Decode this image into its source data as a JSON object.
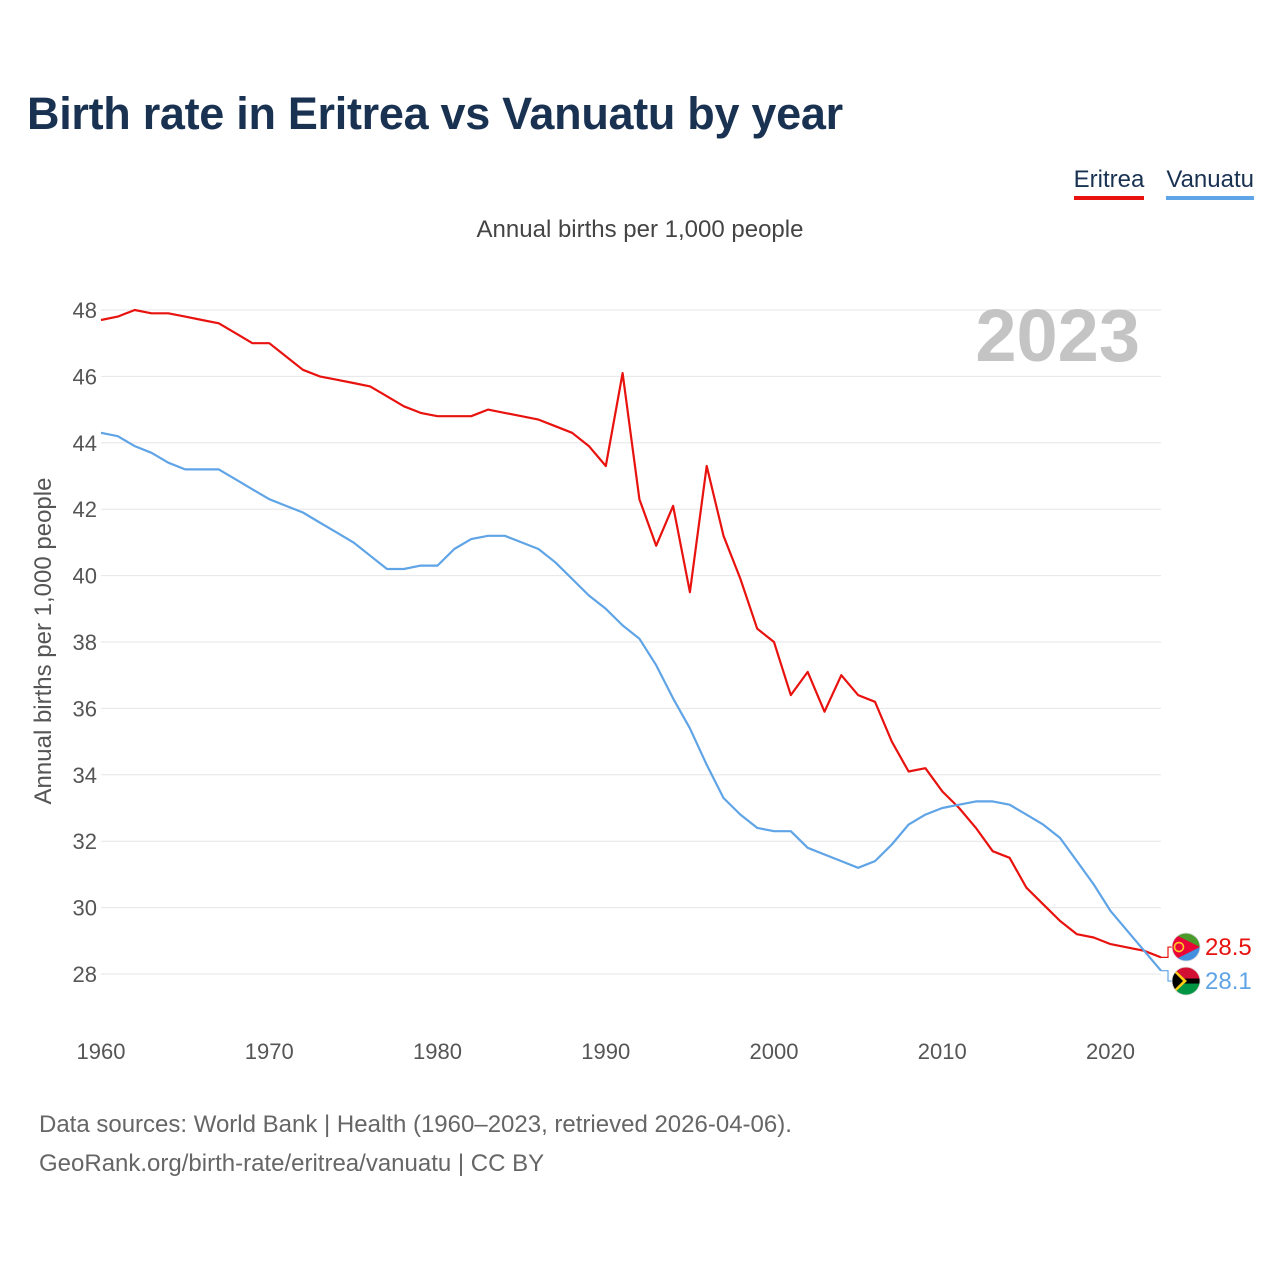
{
  "title": "Birth rate in Eritrea vs Vanuatu by year",
  "subtitle": "Annual births per 1,000 people",
  "legend": [
    {
      "name": "Eritrea",
      "color": "#e8120e"
    },
    {
      "name": "Vanuatu",
      "color": "#5fa4e6"
    }
  ],
  "footer": {
    "line1": "Data sources: World Bank | Health (1960–2023, retrieved 2026-04-06).",
    "line2": "GeoRank.org/birth-rate/eritrea/vanuatu | CC BY"
  },
  "chart_data": {
    "type": "line",
    "title": "Birth rate in Eritrea vs Vanuatu by year",
    "ylabel": "Annual births per 1,000 people",
    "xlabel": "",
    "year_label": "2023",
    "xlim": [
      1960,
      2023
    ],
    "ylim": [
      27,
      48.4
    ],
    "x_ticks": [
      1960,
      1970,
      1980,
      1990,
      2000,
      2010,
      2020
    ],
    "y_ticks": [
      28,
      30,
      32,
      34,
      36,
      38,
      40,
      42,
      44,
      46,
      48
    ],
    "grid": true,
    "x": [
      1960,
      1961,
      1962,
      1963,
      1964,
      1965,
      1966,
      1967,
      1968,
      1969,
      1970,
      1971,
      1972,
      1973,
      1974,
      1975,
      1976,
      1977,
      1978,
      1979,
      1980,
      1981,
      1982,
      1983,
      1984,
      1985,
      1986,
      1987,
      1988,
      1989,
      1990,
      1991,
      1992,
      1993,
      1994,
      1995,
      1996,
      1997,
      1998,
      1999,
      2000,
      2001,
      2002,
      2003,
      2004,
      2005,
      2006,
      2007,
      2008,
      2009,
      2010,
      2011,
      2012,
      2013,
      2014,
      2015,
      2016,
      2017,
      2018,
      2019,
      2020,
      2021,
      2022,
      2023
    ],
    "series": [
      {
        "name": "Eritrea",
        "color": "#e8120e",
        "end_label": "28.5",
        "values": [
          47.7,
          47.8,
          48.0,
          47.9,
          47.9,
          47.8,
          47.7,
          47.6,
          47.3,
          47.0,
          47.0,
          46.6,
          46.2,
          46.0,
          45.9,
          45.8,
          45.7,
          45.4,
          45.1,
          44.9,
          44.8,
          44.8,
          44.8,
          45.0,
          44.9,
          44.8,
          44.7,
          44.5,
          44.3,
          43.9,
          43.3,
          46.1,
          42.3,
          40.9,
          42.1,
          39.5,
          43.3,
          41.2,
          39.9,
          38.4,
          38.0,
          36.4,
          37.1,
          35.9,
          37.0,
          36.4,
          36.2,
          35.0,
          34.1,
          34.2,
          33.5,
          33.0,
          32.4,
          31.7,
          31.5,
          30.6,
          30.1,
          29.6,
          29.2,
          29.1,
          28.9,
          28.8,
          28.7,
          28.5
        ]
      },
      {
        "name": "Vanuatu",
        "color": "#5fa4e6",
        "end_label": "28.1",
        "values": [
          44.3,
          44.2,
          43.9,
          43.7,
          43.4,
          43.2,
          43.2,
          43.2,
          42.9,
          42.6,
          42.3,
          42.1,
          41.9,
          41.6,
          41.3,
          41.0,
          40.6,
          40.2,
          40.2,
          40.3,
          40.3,
          40.8,
          41.1,
          41.2,
          41.2,
          41.0,
          40.8,
          40.4,
          39.9,
          39.4,
          39.0,
          38.5,
          38.1,
          37.3,
          36.3,
          35.4,
          34.3,
          33.3,
          32.8,
          32.4,
          32.3,
          32.3,
          31.8,
          31.6,
          31.4,
          31.2,
          31.4,
          31.9,
          32.5,
          32.8,
          33.0,
          33.1,
          33.2,
          33.2,
          33.1,
          32.8,
          32.5,
          32.1,
          31.4,
          30.7,
          29.9,
          29.3,
          28.7,
          28.1
        ]
      }
    ]
  }
}
